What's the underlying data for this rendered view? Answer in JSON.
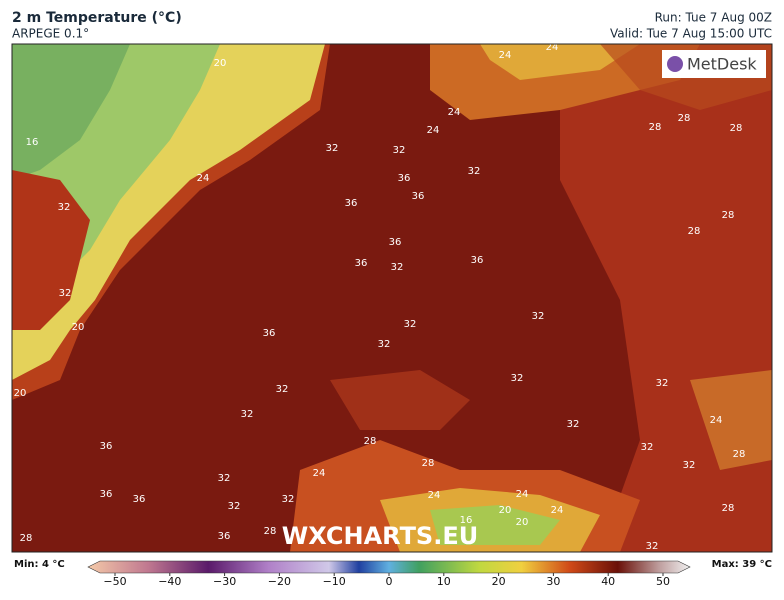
{
  "header": {
    "title": "2 m Temperature (°C)",
    "subtitle": "ARPEGE 0.1°",
    "run": "Run: Tue 7 Aug 00Z",
    "valid": "Valid: Tue 7 Aug 15:00 UTC"
  },
  "logo": "MetDesk",
  "watermark": "WXCHARTS.EU",
  "map": {
    "contour_labels": [
      "20",
      "16",
      "32",
      "24",
      "32",
      "32",
      "36",
      "32",
      "36",
      "36",
      "36",
      "36",
      "32",
      "36",
      "32",
      "20",
      "36",
      "32",
      "32",
      "32",
      "20",
      "32",
      "32",
      "32",
      "32",
      "36",
      "28",
      "32",
      "32",
      "32",
      "24",
      "28",
      "24",
      "32",
      "36",
      "36",
      "32",
      "32",
      "24",
      "20",
      "20",
      "24",
      "16",
      "36",
      "28",
      "32",
      "28",
      "28",
      "28",
      "28",
      "28",
      "24",
      "24",
      "24",
      "24",
      "28",
      "28",
      "28",
      "24"
    ]
  },
  "colorbar": {
    "min": "Min: 4 °C",
    "max": "Max: 39 °C",
    "ticks": [
      {
        "value": -50,
        "label": "−50"
      },
      {
        "value": -40,
        "label": "−40"
      },
      {
        "value": -30,
        "label": "−30"
      },
      {
        "value": -20,
        "label": "−20"
      },
      {
        "value": -10,
        "label": "−10"
      },
      0,
      10,
      20,
      30,
      40,
      50
    ]
  }
}
